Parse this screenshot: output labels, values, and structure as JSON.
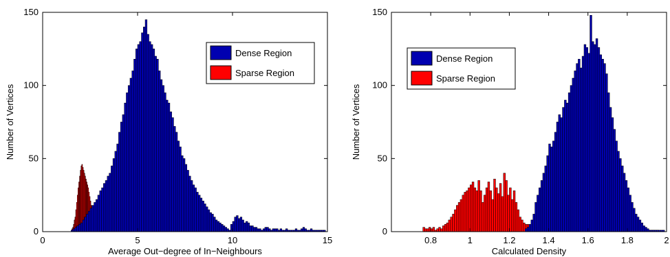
{
  "colors": {
    "dense": "#0000b0",
    "sparse": "#ff0000",
    "edge": "#000000",
    "axis": "#000000"
  },
  "chart_data": [
    {
      "type": "bar",
      "xlabel": "Average Out−degree of In−Neighbours",
      "ylabel": "Number of Vertices",
      "xlim": [
        0,
        15
      ],
      "ylim": [
        0,
        150
      ],
      "xticks": [
        "0",
        "5",
        "10",
        "15"
      ],
      "yticks": [
        "0",
        "50",
        "100",
        "150"
      ],
      "legend_position": "top-right",
      "series": [
        {
          "name": "Dense Region",
          "color": "#0000b0",
          "x_start": 1.5,
          "bin_width": 0.1,
          "values": [
            1,
            2,
            3,
            4,
            5,
            6,
            8,
            10,
            12,
            14,
            16,
            18,
            20,
            22,
            25,
            28,
            30,
            33,
            35,
            38,
            40,
            45,
            50,
            55,
            60,
            68,
            75,
            80,
            88,
            95,
            100,
            105,
            110,
            118,
            125,
            128,
            130,
            136,
            140,
            145,
            135,
            130,
            128,
            125,
            120,
            118,
            110,
            104,
            100,
            95,
            90,
            88,
            82,
            78,
            72,
            68,
            62,
            58,
            52,
            50,
            46,
            42,
            38,
            35,
            32,
            30,
            27,
            25,
            23,
            21,
            19,
            17,
            15,
            13,
            12,
            10,
            8,
            7,
            6,
            5,
            4,
            3,
            2,
            1,
            5,
            7,
            10,
            11,
            9,
            10,
            8,
            6,
            7,
            6,
            4,
            4,
            3,
            3,
            2,
            2,
            1,
            2,
            3,
            3,
            2,
            1,
            2,
            2,
            2,
            1,
            2,
            1,
            1,
            2,
            1,
            1,
            1,
            1,
            2,
            1,
            1,
            2,
            3,
            2,
            1,
            1,
            2,
            1,
            1,
            1,
            1,
            1,
            1,
            1
          ]
        },
        {
          "name": "Sparse Region",
          "color": "#ff0000",
          "x_start": 1.5,
          "bin_width": 0.04,
          "values": [
            1,
            2,
            3,
            5,
            8,
            10,
            15,
            20,
            25,
            30,
            34,
            38,
            42,
            45,
            46,
            44,
            42,
            40,
            38,
            36,
            34,
            32,
            30,
            27,
            24,
            21,
            18,
            15,
            12,
            10,
            8,
            7,
            5,
            4,
            3,
            2,
            2,
            1,
            1,
            1,
            1,
            1,
            1,
            1,
            1,
            1,
            1,
            1,
            1,
            1,
            1,
            0,
            1,
            1,
            1,
            0,
            1,
            1,
            1,
            1,
            1,
            1,
            0,
            1,
            1,
            0,
            1,
            1,
            0,
            1,
            1,
            1,
            0,
            1,
            1,
            1,
            1,
            1,
            1,
            0,
            1,
            1,
            0,
            1,
            1,
            1,
            0,
            1,
            1,
            1,
            0,
            1,
            1,
            1,
            0,
            0,
            1
          ]
        }
      ]
    },
    {
      "type": "bar",
      "xlabel": "Calculated Density",
      "ylabel": "Number of Vertices",
      "xlim": [
        0.6,
        2.0
      ],
      "ylim": [
        0,
        150
      ],
      "xticks": [
        "0.8",
        "1",
        "1.2",
        "1.4",
        "1.6",
        "1.8",
        "2"
      ],
      "yticks": [
        "0",
        "50",
        "100",
        "150"
      ],
      "legend_position": "top-left",
      "series": [
        {
          "name": "Dense Region",
          "color": "#0000b0",
          "x_start": 1.28,
          "bin_width": 0.01,
          "values": [
            2,
            3,
            5,
            8,
            12,
            20,
            25,
            30,
            35,
            40,
            45,
            52,
            60,
            58,
            62,
            68,
            75,
            80,
            78,
            85,
            90,
            88,
            95,
            100,
            105,
            110,
            115,
            118,
            112,
            120,
            128,
            126,
            122,
            148,
            130,
            128,
            132,
            126,
            121,
            118,
            115,
            108,
            95,
            85,
            78,
            70,
            62,
            55,
            50,
            45,
            40,
            35,
            30,
            25,
            20,
            16,
            12,
            10,
            8,
            6,
            4,
            3,
            2,
            1,
            1,
            1,
            1,
            1,
            1,
            1,
            1
          ]
        },
        {
          "name": "Sparse Region",
          "color": "#ff0000",
          "x_start": 0.76,
          "bin_width": 0.01,
          "values": [
            3,
            2,
            2,
            3,
            2,
            3,
            1,
            2,
            3,
            2,
            4,
            5,
            6,
            8,
            10,
            12,
            15,
            18,
            20,
            22,
            25,
            27,
            28,
            30,
            32,
            34,
            30,
            28,
            35,
            28,
            20,
            25,
            30,
            34,
            28,
            22,
            36,
            30,
            26,
            33,
            24,
            40,
            35,
            25,
            30,
            22,
            28,
            20,
            15,
            10,
            8,
            6,
            5,
            5,
            4,
            4,
            3,
            3,
            3,
            2,
            2,
            2,
            2,
            2,
            1,
            1,
            1,
            1,
            1,
            1,
            1,
            1,
            1,
            1,
            1,
            1,
            1,
            1,
            1,
            1,
            1,
            1,
            1,
            1,
            1,
            1,
            1,
            1,
            1,
            1,
            1,
            1,
            1,
            1,
            1,
            1,
            1,
            1,
            1,
            1,
            1,
            1,
            1,
            1,
            1,
            1,
            1,
            1,
            1,
            1,
            1,
            1,
            1,
            1,
            1,
            1,
            1,
            1,
            1,
            1
          ]
        }
      ]
    }
  ]
}
